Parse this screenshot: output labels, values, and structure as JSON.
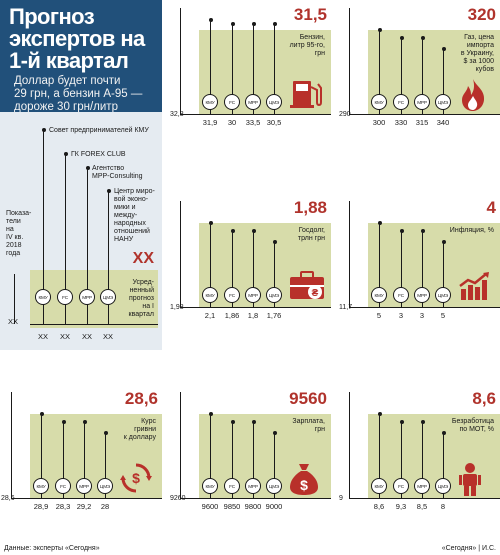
{
  "header": {
    "title_lines": [
      "Прогноз",
      "экспертов на",
      "1-й квартал"
    ],
    "subtitle_lines": [
      "Доллар будет почти",
      "29 грн, а бензин А-95 —",
      "дороже 30 грн/литр"
    ]
  },
  "key": {
    "baseline_label": "Показа-\nтели на\nIV кв.\n2018\nгода",
    "baseline_value": "XX",
    "sources": [
      {
        "badge": "КМУ",
        "desc": "Совет предпринимателей КМУ",
        "value": "XX"
      },
      {
        "badge": "FC",
        "desc": "ГК FOREX CLUB",
        "value": "XX"
      },
      {
        "badge": "МРР",
        "desc": "Агентство\nMPP-Consulting",
        "value": "XX"
      },
      {
        "badge": "ЦМЭ",
        "desc": "Центр миро-\nвой эконо-\nмики и между-\nнародных\nотношений\nНАНУ",
        "value": "XX"
      }
    ],
    "avg_value": "XX",
    "avg_label": "Усред-\nненный\nпрогноз\nна I\nквартал"
  },
  "chart_data": [
    {
      "type": "bar",
      "title": "Бензин, литр 95-го, грн",
      "average": "31,5",
      "baseline": "32,8",
      "categories": [
        "КМУ",
        "FC",
        "МРР",
        "ЦМЭ"
      ],
      "values": [
        "31,9",
        "30",
        "33,5",
        "30,5"
      ],
      "icon": "fuel-pump-icon"
    },
    {
      "type": "bar",
      "title": "Газ, цена импорта в Украину, $ за 1000 кубов",
      "average": "320",
      "baseline": "290",
      "categories": [
        "КМУ",
        "FC",
        "МРР",
        "ЦМЭ"
      ],
      "values": [
        "300",
        "330",
        "315",
        "340"
      ],
      "icon": "gas-flame-icon"
    },
    {
      "type": "bar",
      "title": "Госдолг, трлн грн",
      "average": "1,88",
      "baseline": "1,98",
      "categories": [
        "КМУ",
        "FC",
        "МРР",
        "ЦМЭ"
      ],
      "values": [
        "2,1",
        "1,86",
        "1,8",
        "1,76"
      ],
      "icon": "briefcase-hryvnia-icon"
    },
    {
      "type": "bar",
      "title": "Инфляция, %",
      "average": "4",
      "baseline": "11,7",
      "categories": [
        "КМУ",
        "FC",
        "МРР",
        "ЦМЭ"
      ],
      "values": [
        "5",
        "3",
        "3",
        "5"
      ],
      "icon": "rising-chart-icon"
    },
    {
      "type": "bar",
      "title": "Курс гривни к доллару",
      "average": "28,6",
      "baseline": "28,6",
      "categories": [
        "КМУ",
        "FC",
        "МРР",
        "ЦМЭ"
      ],
      "values": [
        "28,9",
        "28,3",
        "29,2",
        "28"
      ],
      "icon": "currency-exchange-icon"
    },
    {
      "type": "bar",
      "title": "Зарплата, грн",
      "average": "9560",
      "baseline": "9260",
      "categories": [
        "КМУ",
        "FC",
        "МРР",
        "ЦМЭ"
      ],
      "values": [
        "9600",
        "9850",
        "9800",
        "9000"
      ],
      "icon": "money-bag-icon"
    },
    {
      "type": "bar",
      "title": "Безработица по МОТ, %",
      "average": "8,6",
      "baseline": "9",
      "categories": [
        "КМУ",
        "FC",
        "МРР",
        "ЦМЭ"
      ],
      "values": [
        "8,6",
        "9,3",
        "8,5",
        "8"
      ],
      "icon": "worker-icon"
    }
  ],
  "footer": {
    "left": "Данные: эксперты «Сегодня»",
    "right": "«Сегодня» | И.С."
  },
  "colors": {
    "header_bg": "#21507a",
    "key_bg": "#e5ebf1",
    "band": "#d7dcaa",
    "accent": "#b0332c",
    "icon": "#b8302a"
  }
}
